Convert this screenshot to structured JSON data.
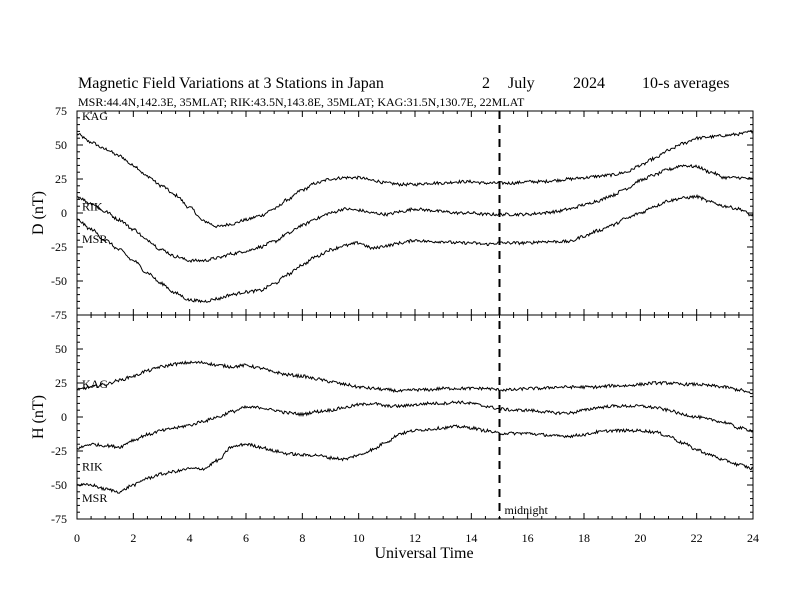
{
  "chart_data": {
    "type": "line",
    "title": {
      "main": "Magnetic Field Variations at 3 Stations in Japan",
      "day": "2",
      "month": "July",
      "year": "2024",
      "avg": "10-s averages"
    },
    "subtitle": "MSR:44.4N,142.3E, 35MLAT;  RIK:43.5N,143.8E, 35MLAT;  KAG:31.5N,130.7E, 22MLAT",
    "xlabel": "Universal Time",
    "xlim": [
      0,
      24
    ],
    "xticks": [
      "0",
      "2",
      "4",
      "6",
      "8",
      "10",
      "12",
      "14",
      "16",
      "18",
      "20",
      "22",
      "24"
    ],
    "midnight": {
      "x": 15,
      "label": "midnight"
    },
    "grid": false,
    "panels": [
      {
        "ylabel": "D (nT)",
        "ylim": [
          -75,
          75
        ],
        "yticks": [
          "75",
          "50",
          "25",
          "0",
          "-25",
          "-50",
          "-75"
        ],
        "series": [
          {
            "name": "KAG",
            "x": [
              0,
              0.5,
              1,
              1.5,
              2,
              2.5,
              3,
              3.5,
              4,
              4.5,
              5,
              5.5,
              6,
              6.5,
              7,
              7.5,
              8,
              8.5,
              9,
              9.5,
              10,
              10.5,
              11,
              11.5,
              12,
              12.5,
              13,
              13.5,
              14,
              14.5,
              15,
              15.5,
              16,
              16.5,
              17,
              17.5,
              18,
              18.5,
              19,
              19.5,
              20,
              20.5,
              21,
              21.5,
              22,
              22.5,
              23,
              23.5,
              24
            ],
            "values": [
              58,
              52,
              47,
              42,
              35,
              27,
              20,
              13,
              4,
              -6,
              -10,
              -8,
              -5,
              -2,
              3,
              10,
              17,
              22,
              25,
              26,
              26,
              24,
              22,
              21,
              21,
              22,
              22,
              23,
              23,
              22,
              22,
              22,
              23,
              23,
              24,
              25,
              26,
              27,
              28,
              30,
              35,
              40,
              46,
              51,
              55,
              56,
              57,
              58,
              60
            ]
          },
          {
            "name": "RIK",
            "x": [
              0,
              0.5,
              1,
              1.5,
              2,
              2.5,
              3,
              3.5,
              4,
              4.5,
              5,
              5.5,
              6,
              6.5,
              7,
              7.5,
              8,
              8.5,
              9,
              9.5,
              10,
              10.5,
              11,
              11.5,
              12,
              12.5,
              13,
              13.5,
              14,
              14.5,
              15,
              15.5,
              16,
              16.5,
              17,
              17.5,
              18,
              18.5,
              19,
              19.5,
              20,
              20.5,
              21,
              21.5,
              22,
              22.5,
              23,
              23.5,
              24
            ],
            "values": [
              12,
              7,
              1,
              -5,
              -12,
              -20,
              -27,
              -32,
              -35,
              -35,
              -33,
              -30,
              -28,
              -25,
              -21,
              -15,
              -9,
              -4,
              0,
              3,
              2,
              0,
              -1,
              1,
              3,
              2,
              1,
              0,
              0,
              -1,
              -1,
              -1,
              -1,
              0,
              1,
              3,
              6,
              9,
              13,
              18,
              24,
              28,
              32,
              35,
              34,
              30,
              26,
              26,
              25
            ]
          },
          {
            "name": "MSR",
            "x": [
              0,
              0.5,
              1,
              1.5,
              2,
              2.5,
              3,
              3.5,
              4,
              4.5,
              5,
              5.5,
              6,
              6.5,
              7,
              7.5,
              8,
              8.5,
              9,
              9.5,
              10,
              10.5,
              11,
              11.5,
              12,
              12.5,
              13,
              13.5,
              14,
              14.5,
              15,
              15.5,
              16,
              16.5,
              17,
              17.5,
              18,
              18.5,
              19,
              19.5,
              20,
              20.5,
              21,
              21.5,
              22,
              22.5,
              23,
              23.5,
              24
            ],
            "values": [
              -5,
              -12,
              -20,
              -27,
              -35,
              -44,
              -52,
              -59,
              -64,
              -65,
              -63,
              -60,
              -58,
              -57,
              -52,
              -45,
              -38,
              -32,
              -27,
              -24,
              -22,
              -26,
              -24,
              -22,
              -20,
              -21,
              -21,
              -22,
              -22,
              -23,
              -22,
              -22,
              -22,
              -21,
              -21,
              -21,
              -17,
              -13,
              -9,
              -4,
              0,
              5,
              9,
              11,
              12,
              8,
              5,
              3,
              -2
            ]
          }
        ]
      },
      {
        "ylabel": "H (nT)",
        "ylim": [
          -75,
          75
        ],
        "yticks": [
          "75",
          "50",
          "25",
          "0",
          "-25",
          "-50",
          "-75"
        ],
        "series": [
          {
            "name": "KAG",
            "x": [
              0,
              0.5,
              1,
              1.5,
              2,
              2.5,
              3,
              3.5,
              4,
              4.5,
              5,
              5.5,
              6,
              6.5,
              7,
              7.5,
              8,
              8.5,
              9,
              9.5,
              10,
              10.5,
              11,
              11.5,
              12,
              12.5,
              13,
              13.5,
              14,
              14.5,
              15,
              15.5,
              16,
              16.5,
              17,
              17.5,
              18,
              18.5,
              19,
              19.5,
              20,
              20.5,
              21,
              21.5,
              22,
              22.5,
              23,
              23.5,
              24
            ],
            "values": [
              20,
              22,
              24,
              27,
              30,
              34,
              37,
              39,
              40,
              40,
              38,
              37,
              38,
              36,
              33,
              31,
              30,
              28,
              26,
              24,
              22,
              21,
              20,
              19,
              20,
              20,
              21,
              21,
              21,
              21,
              20,
              20,
              21,
              21,
              22,
              22,
              22,
              22,
              23,
              23,
              24,
              25,
              25,
              24,
              24,
              23,
              22,
              20,
              17
            ]
          },
          {
            "name": "RIK",
            "x": [
              0,
              0.5,
              1,
              1.5,
              2,
              2.5,
              3,
              3.5,
              4,
              4.5,
              5,
              5.5,
              6,
              6.5,
              7,
              7.5,
              8,
              8.5,
              9,
              9.5,
              10,
              10.5,
              11,
              11.5,
              12,
              12.5,
              13,
              13.5,
              14,
              14.5,
              15,
              15.5,
              16,
              16.5,
              17,
              17.5,
              18,
              18.5,
              19,
              19.5,
              20,
              20.5,
              21,
              21.5,
              22,
              22.5,
              23,
              23.5,
              24
            ],
            "values": [
              -23,
              -20,
              -21,
              -22,
              -17,
              -13,
              -10,
              -8,
              -6,
              -3,
              0,
              4,
              7,
              7,
              5,
              3,
              2,
              4,
              5,
              7,
              9,
              10,
              8,
              8,
              9,
              10,
              10,
              11,
              10,
              8,
              6,
              5,
              5,
              4,
              3,
              3,
              5,
              7,
              8,
              8,
              8,
              7,
              5,
              2,
              0,
              -2,
              -4,
              -8,
              -10
            ]
          },
          {
            "name": "MSR",
            "x": [
              0,
              0.5,
              1,
              1.5,
              2,
              2.5,
              3,
              3.5,
              4,
              4.5,
              5,
              5.5,
              6,
              6.5,
              7,
              7.5,
              8,
              8.5,
              9,
              9.5,
              10,
              10.5,
              11,
              11.5,
              12,
              12.5,
              13,
              13.5,
              14,
              14.5,
              15,
              15.5,
              16,
              16.5,
              17,
              17.5,
              18,
              18.5,
              19,
              19.5,
              20,
              20.5,
              21,
              21.5,
              22,
              22.5,
              23,
              23.5,
              24
            ],
            "values": [
              -50,
              -50,
              -53,
              -55,
              -50,
              -45,
              -42,
              -40,
              -38,
              -38,
              -32,
              -22,
              -20,
              -22,
              -25,
              -27,
              -28,
              -28,
              -30,
              -31,
              -28,
              -24,
              -18,
              -12,
              -10,
              -9,
              -8,
              -7,
              -8,
              -10,
              -12,
              -12,
              -12,
              -13,
              -14,
              -14,
              -13,
              -11,
              -10,
              -10,
              -10,
              -11,
              -14,
              -19,
              -24,
              -28,
              -32,
              -35,
              -38
            ]
          }
        ]
      }
    ]
  }
}
